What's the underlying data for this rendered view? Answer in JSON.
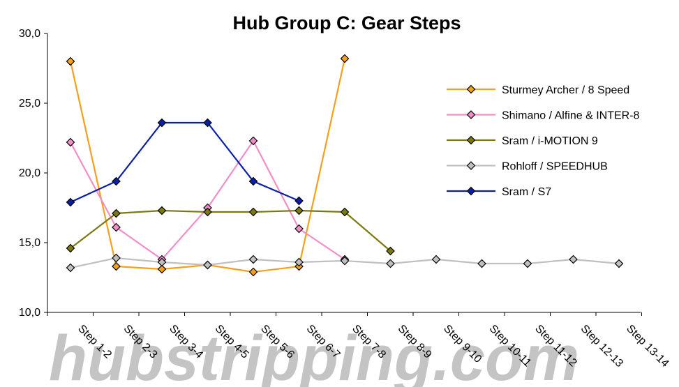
{
  "watermark": "hubstripping.com",
  "chart_data": {
    "type": "line",
    "title": "Hub Group C: Gear Steps",
    "xlabel": "",
    "ylabel": "",
    "ylim": [
      10,
      30
    ],
    "y_ticks": [
      "10,0",
      "15,0",
      "20,0",
      "25,0",
      "30,0"
    ],
    "categories": [
      "Step 1-2",
      "Step 2-3",
      "Step 3-4",
      "Step 4-5",
      "Step 5-6",
      "Step 6-7",
      "Step 7-8",
      "Step 8-9",
      "Step 9-10",
      "Step 10-11",
      "Step 11-12",
      "Step 12-13",
      "Step 13-14"
    ],
    "grid": false,
    "legend_position": "right",
    "series": [
      {
        "name": "Sturmey Archer / 8 Speed",
        "color": "#f5a01a",
        "values": [
          28.0,
          13.3,
          13.1,
          13.4,
          12.9,
          13.3,
          28.2,
          null,
          null,
          null,
          null,
          null,
          null
        ]
      },
      {
        "name": "Shimano / Alfine & INTER-8",
        "color": "#f28ec7",
        "values": [
          22.2,
          16.1,
          13.8,
          17.5,
          22.3,
          16.0,
          13.8,
          null,
          null,
          null,
          null,
          null,
          null
        ]
      },
      {
        "name": "Sram / i-MOTION 9",
        "color": "#7a7a10",
        "values": [
          14.6,
          17.1,
          17.3,
          17.2,
          17.2,
          17.3,
          17.2,
          14.4,
          null,
          null,
          null,
          null,
          null
        ]
      },
      {
        "name": "Rohloff / SPEEDHUB",
        "color": "#c0c0c0",
        "values": [
          13.2,
          13.9,
          13.6,
          13.4,
          13.8,
          13.6,
          13.7,
          13.5,
          13.8,
          13.5,
          13.5,
          13.8,
          13.5
        ]
      },
      {
        "name": "Sram / S7",
        "color": "#0a1fa8",
        "values": [
          17.9,
          19.4,
          23.6,
          23.6,
          19.4,
          18.0,
          null,
          null,
          null,
          null,
          null,
          null,
          null
        ]
      }
    ]
  }
}
